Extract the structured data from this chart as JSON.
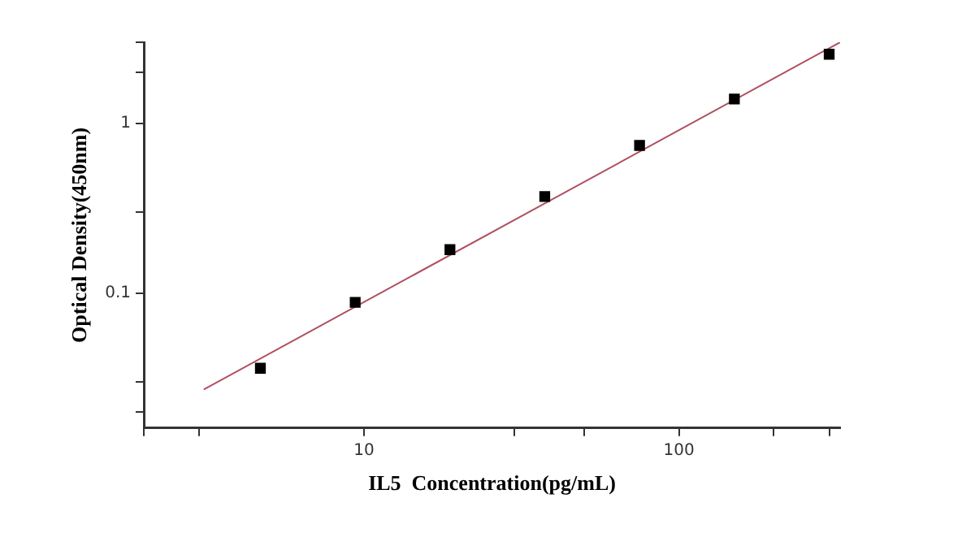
{
  "chart_data": {
    "type": "scatter",
    "xlabel": "IL5  Concentration(pg/mL)",
    "ylabel": "Optical Density(450nm)",
    "log": "xy",
    "grid": false,
    "legend": false,
    "marker": "square",
    "xlim": [
      2,
      325
    ],
    "xticks": [
      {
        "value": 2,
        "label": null
      },
      {
        "value": 3,
        "label": null
      },
      {
        "value": 10,
        "label": "10"
      },
      {
        "value": 30,
        "label": null
      },
      {
        "value": 50,
        "label": null
      },
      {
        "value": 100,
        "label": "100"
      },
      {
        "value": 200,
        "label": null
      },
      {
        "value": 300,
        "label": null
      }
    ],
    "ylim": [
      0.016,
      3
    ],
    "yticks": [
      {
        "value": 0.02,
        "label": null
      },
      {
        "value": 0.03,
        "label": null
      },
      {
        "value": 0.1,
        "label": "0.1"
      },
      {
        "value": 0.3,
        "label": null
      },
      {
        "value": 1,
        "label": "1"
      },
      {
        "value": 2,
        "label": null
      },
      {
        "value": 3,
        "label": null
      }
    ],
    "series": [
      {
        "color": "#000000",
        "x": [
          4.69,
          9.38,
          18.75,
          37.5,
          75,
          150,
          300
        ],
        "values": [
          0.036,
          0.088,
          0.18,
          0.37,
          0.74,
          1.39,
          2.55
        ]
      },
      {
        "type": "line",
        "color": "#b05060",
        "marker": "none",
        "x": [
          3.1,
          325
        ],
        "values": [
          0.027,
          3.0
        ]
      }
    ]
  }
}
